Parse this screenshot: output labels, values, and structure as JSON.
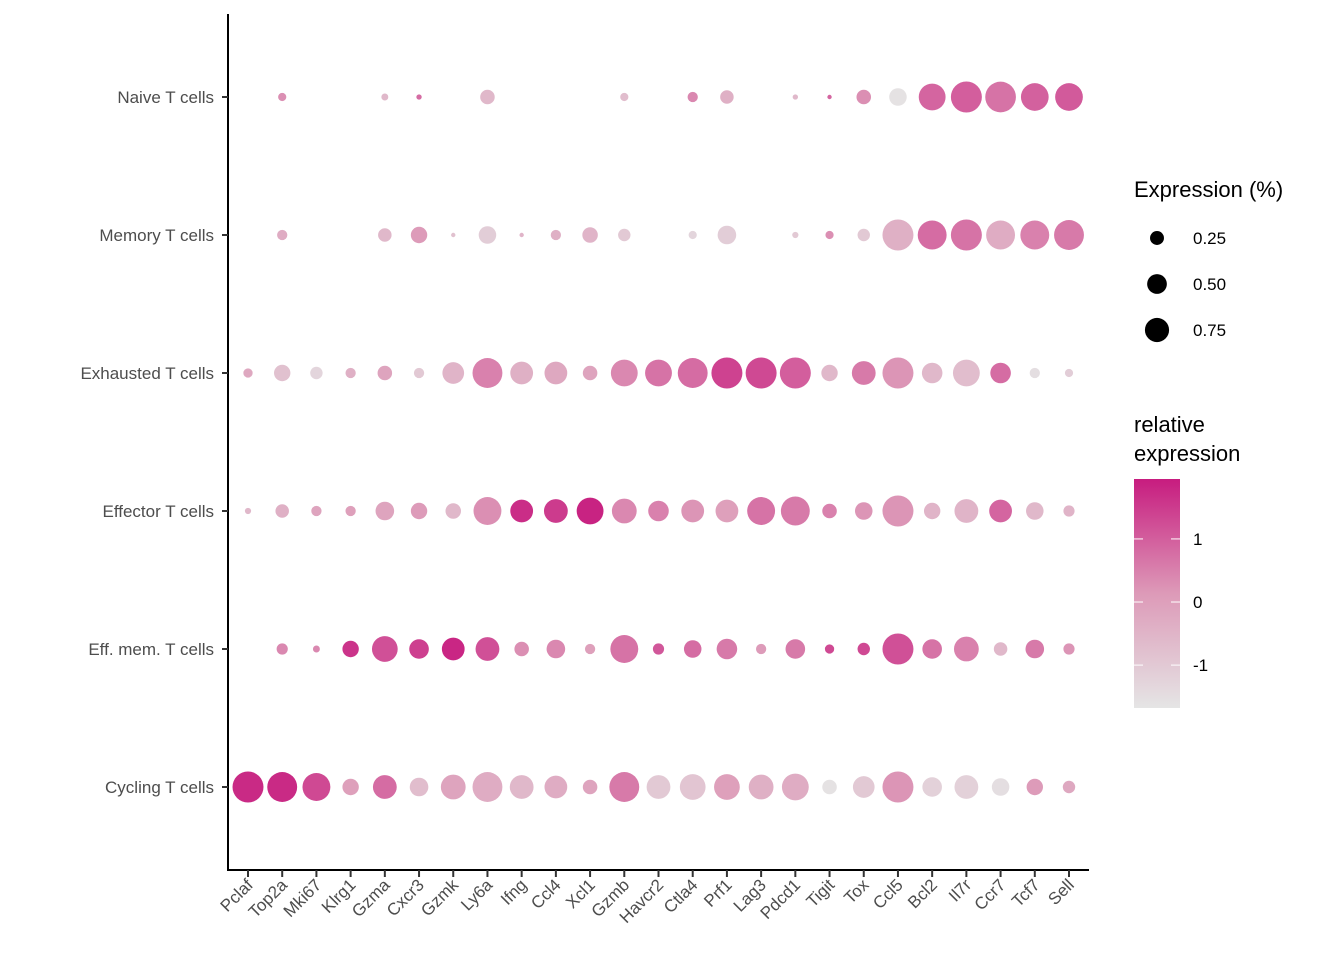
{
  "chart_data": {
    "type": "scatter",
    "subtype": "dot-plot",
    "title": "",
    "xlabel": "",
    "ylabel": "",
    "genes": [
      "Pclaf",
      "Top2a",
      "Mki67",
      "Klrg1",
      "Gzma",
      "Cxcr3",
      "Gzmk",
      "Ly6a",
      "Ifng",
      "Ccl4",
      "Xcl1",
      "Gzmb",
      "Havcr2",
      "Ctla4",
      "Prf1",
      "Lag3",
      "Pdcd1",
      "Tigit",
      "Tox",
      "Ccl5",
      "Bcl2",
      "Il7r",
      "Ccr7",
      "Tcf7",
      "Sell"
    ],
    "cell_types": [
      "Naive T cells",
      "Memory T cells",
      "Exhausted T cells",
      "Effector T cells",
      "Eff. mem. T cells",
      "Cycling T cells"
    ],
    "size_legend": {
      "title": "Expression (%)",
      "breaks": [
        0.25,
        0.5,
        0.75
      ],
      "labels": [
        "0.25",
        "0.50",
        "0.75"
      ]
    },
    "color_legend": {
      "title_line1": "relative",
      "title_line2": "expression",
      "range": [
        -1.68,
        1.95
      ],
      "breaks": [
        1,
        0,
        -1
      ],
      "labels": [
        "1",
        "0",
        "-1"
      ],
      "low_color": "#e5e5e5",
      "high_color": "#c71c7f"
    },
    "series": [
      {
        "name": "Naive T cells",
        "points": [
          null,
          [
            0.07,
            0.3
          ],
          null,
          null,
          [
            0.05,
            -0.6
          ],
          [
            0.03,
            0.8
          ],
          null,
          [
            0.22,
            -0.6
          ],
          null,
          null,
          null,
          [
            0.07,
            -0.7
          ],
          null,
          [
            0.11,
            0.4
          ],
          [
            0.19,
            -0.4
          ],
          null,
          [
            0.03,
            -0.6
          ],
          [
            0.02,
            0.9
          ],
          [
            0.22,
            0.3
          ],
          [
            0.32,
            -1.6
          ],
          [
            0.75,
            0.9
          ],
          [
            1.0,
            1.0
          ],
          [
            0.98,
            0.7
          ],
          [
            0.8,
            0.95
          ],
          [
            0.8,
            1.05
          ]
        ]
      },
      {
        "name": "Memory T cells",
        "points": [
          null,
          [
            0.11,
            -0.3
          ],
          null,
          null,
          [
            0.19,
            -0.6
          ],
          [
            0.28,
            0.1
          ],
          [
            0.02,
            -0.8
          ],
          [
            0.32,
            -1.1
          ],
          [
            0.02,
            -0.5
          ],
          [
            0.11,
            -0.4
          ],
          [
            0.25,
            -0.5
          ],
          [
            0.16,
            -1.0
          ],
          null,
          [
            0.07,
            -1.3
          ],
          [
            0.36,
            -1.1
          ],
          null,
          [
            0.04,
            -1.0
          ],
          [
            0.07,
            0.3
          ],
          [
            0.16,
            -1.0
          ],
          [
            1.0,
            -0.4
          ],
          [
            0.87,
            0.8
          ],
          [
            1.0,
            0.7
          ],
          [
            0.87,
            -0.3
          ],
          [
            0.87,
            0.5
          ],
          [
            0.93,
            0.6
          ]
        ]
      },
      {
        "name": "Exhausted T cells",
        "points": [
          [
            0.09,
            -0.2
          ],
          [
            0.28,
            -0.8
          ],
          [
            0.16,
            -1.3
          ],
          [
            0.11,
            -0.4
          ],
          [
            0.22,
            -0.1
          ],
          [
            0.11,
            -1.0
          ],
          [
            0.49,
            -0.5
          ],
          [
            0.93,
            0.5
          ],
          [
            0.54,
            -0.4
          ],
          [
            0.54,
            -0.2
          ],
          [
            0.22,
            -0.1
          ],
          [
            0.75,
            0.4
          ],
          [
            0.75,
            0.7
          ],
          [
            0.93,
            0.8
          ],
          [
            1.0,
            1.4
          ],
          [
            1.0,
            1.3
          ],
          [
            1.0,
            1.0
          ],
          [
            0.28,
            -0.6
          ],
          [
            0.59,
            0.6
          ],
          [
            1.0,
            0.2
          ],
          [
            0.44,
            -0.6
          ],
          [
            0.75,
            -0.7
          ],
          [
            0.44,
            0.8
          ],
          [
            0.11,
            -1.5
          ],
          [
            0.07,
            -1.1
          ]
        ]
      },
      {
        "name": "Effector T cells",
        "points": [
          [
            0.04,
            -0.6
          ],
          [
            0.19,
            -0.4
          ],
          [
            0.11,
            -0.1
          ],
          [
            0.11,
            0.0
          ],
          [
            0.36,
            -0.1
          ],
          [
            0.28,
            0.1
          ],
          [
            0.25,
            -0.6
          ],
          [
            0.81,
            0.3
          ],
          [
            0.54,
            1.7
          ],
          [
            0.59,
            1.5
          ],
          [
            0.75,
            1.85
          ],
          [
            0.64,
            0.4
          ],
          [
            0.44,
            0.5
          ],
          [
            0.54,
            0.2
          ],
          [
            0.54,
            0.0
          ],
          [
            0.81,
            0.7
          ],
          [
            0.87,
            0.6
          ],
          [
            0.22,
            0.5
          ],
          [
            0.32,
            0.2
          ],
          [
            1.0,
            0.2
          ],
          [
            0.28,
            -0.5
          ],
          [
            0.59,
            -0.5
          ],
          [
            0.54,
            0.9
          ],
          [
            0.32,
            -0.6
          ],
          [
            0.13,
            -0.5
          ]
        ]
      },
      {
        "name": "Eff. mem. T cells",
        "points": [
          null,
          [
            0.13,
            0.4
          ],
          [
            0.05,
            0.4
          ],
          [
            0.28,
            1.6
          ],
          [
            0.69,
            1.2
          ],
          [
            0.4,
            1.45
          ],
          [
            0.54,
            1.8
          ],
          [
            0.59,
            1.2
          ],
          [
            0.22,
            0.3
          ],
          [
            0.36,
            0.4
          ],
          [
            0.11,
            0.0
          ],
          [
            0.81,
            0.7
          ],
          [
            0.13,
            1.1
          ],
          [
            0.32,
            0.8
          ],
          [
            0.44,
            0.6
          ],
          [
            0.11,
            0.1
          ],
          [
            0.4,
            0.6
          ],
          [
            0.09,
            1.3
          ],
          [
            0.16,
            1.3
          ],
          [
            1.0,
            1.2
          ],
          [
            0.4,
            0.7
          ],
          [
            0.64,
            0.5
          ],
          [
            0.19,
            -0.6
          ],
          [
            0.36,
            0.6
          ],
          [
            0.13,
            0.2
          ]
        ]
      },
      {
        "name": "Cycling T cells",
        "points": [
          [
            1.0,
            1.75
          ],
          [
            0.93,
            1.75
          ],
          [
            0.81,
            1.3
          ],
          [
            0.28,
            0.0
          ],
          [
            0.59,
            0.8
          ],
          [
            0.36,
            -0.7
          ],
          [
            0.64,
            -0.1
          ],
          [
            0.93,
            -0.3
          ],
          [
            0.59,
            -0.6
          ],
          [
            0.54,
            -0.3
          ],
          [
            0.22,
            -0.1
          ],
          [
            0.93,
            0.6
          ],
          [
            0.59,
            -1.0
          ],
          [
            0.69,
            -0.9
          ],
          [
            0.69,
            0.0
          ],
          [
            0.64,
            -0.4
          ],
          [
            0.75,
            -0.3
          ],
          [
            0.22,
            -1.6
          ],
          [
            0.49,
            -1.0
          ],
          [
            1.0,
            0.2
          ],
          [
            0.4,
            -1.2
          ],
          [
            0.59,
            -1.2
          ],
          [
            0.32,
            -1.5
          ],
          [
            0.28,
            0.1
          ],
          [
            0.16,
            -0.2
          ]
        ]
      }
    ]
  }
}
